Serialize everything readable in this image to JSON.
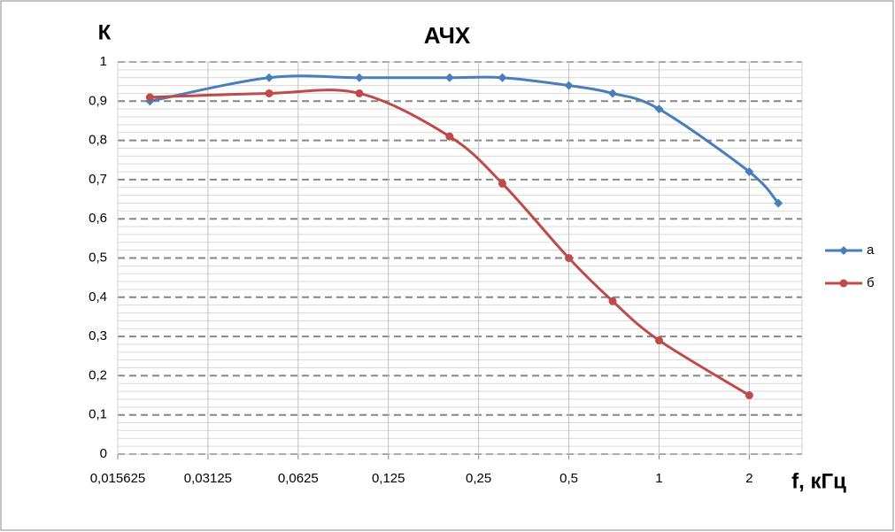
{
  "chart_data": {
    "type": "line",
    "title": "АЧХ",
    "y_label": "К",
    "x_label": "f, кГц",
    "x": [
      0.02,
      0.05,
      0.1,
      0.2,
      0.3,
      0.5,
      0.7,
      1,
      2,
      2.5
    ],
    "series": [
      {
        "name": "а",
        "color": "#4a7ebb",
        "marker": "diamond",
        "values": [
          0.9,
          0.96,
          0.96,
          0.96,
          0.96,
          0.94,
          0.92,
          0.88,
          0.72,
          0.64
        ]
      },
      {
        "name": "б",
        "color": "#be4b48",
        "marker": "circle",
        "values": [
          0.91,
          0.92,
          0.92,
          0.81,
          0.69,
          0.5,
          0.39,
          0.29,
          0.15,
          null
        ]
      }
    ],
    "x_log_base": 2,
    "xlim": [
      0.015625,
      3
    ],
    "xticks": [
      {
        "value": 0.015625,
        "label": "0,015625"
      },
      {
        "value": 0.03125,
        "label": "0,03125"
      },
      {
        "value": 0.0625,
        "label": "0,0625"
      },
      {
        "value": 0.125,
        "label": "0,125"
      },
      {
        "value": 0.25,
        "label": "0,25"
      },
      {
        "value": 0.5,
        "label": "0,5"
      },
      1,
      2
    ],
    "ylim": [
      0,
      1
    ],
    "yticks": [
      0,
      {
        "value": 0.1,
        "label": "0,1"
      },
      {
        "value": 0.2,
        "label": "0,2"
      },
      {
        "value": 0.3,
        "label": "0,3"
      },
      {
        "value": 0.4,
        "label": "0,4"
      },
      {
        "value": 0.5,
        "label": "0,5"
      },
      {
        "value": 0.6,
        "label": "0,6"
      },
      {
        "value": 0.7,
        "label": "0,7"
      },
      {
        "value": 0.8,
        "label": "0,8"
      },
      {
        "value": 0.9,
        "label": "0,9"
      },
      1
    ],
    "grid": true,
    "legend": "right"
  }
}
